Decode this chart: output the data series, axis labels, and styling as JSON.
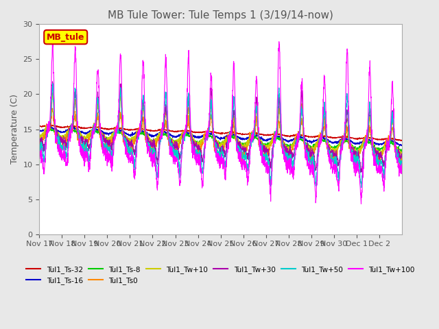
{
  "title": "MB Tule Tower: Tule Temps 1 (3/19/14-now)",
  "ylabel": "Temperature (C)",
  "ylim": [
    0,
    30
  ],
  "yticks": [
    0,
    5,
    10,
    15,
    20,
    25,
    30
  ],
  "xtick_labels": [
    "Nov 17",
    "Nov 18",
    "Nov 19",
    "Nov 20",
    "Nov 21",
    "Nov 22",
    "Nov 23",
    "Nov 24",
    "Nov 25",
    "Nov 26",
    "Nov 27",
    "Nov 28",
    "Nov 29",
    "Nov 30",
    "Dec 1",
    "Dec 2"
  ],
  "legend_box_label": "MB_tule",
  "legend_box_color": "#ffff00",
  "legend_box_border": "#cc0000",
  "series": [
    {
      "label": "Tul1_Ts-32",
      "color": "#cc0000"
    },
    {
      "label": "Tul1_Ts-16",
      "color": "#0000cc"
    },
    {
      "label": "Tul1_Ts-8",
      "color": "#00cc00"
    },
    {
      "label": "Tul1_Ts0",
      "color": "#ff8800"
    },
    {
      "label": "Tul1_Tw+10",
      "color": "#cccc00"
    },
    {
      "label": "Tul1_Tw+30",
      "color": "#aa00aa"
    },
    {
      "label": "Tul1_Tw+50",
      "color": "#00cccc"
    },
    {
      "label": "Tul1_Tw+100",
      "color": "#ff00ff"
    }
  ],
  "background_color": "#e8e8e8",
  "plot_bg_color": "#ffffff",
  "grid_color": "#ffffff",
  "title_fontsize": 11
}
